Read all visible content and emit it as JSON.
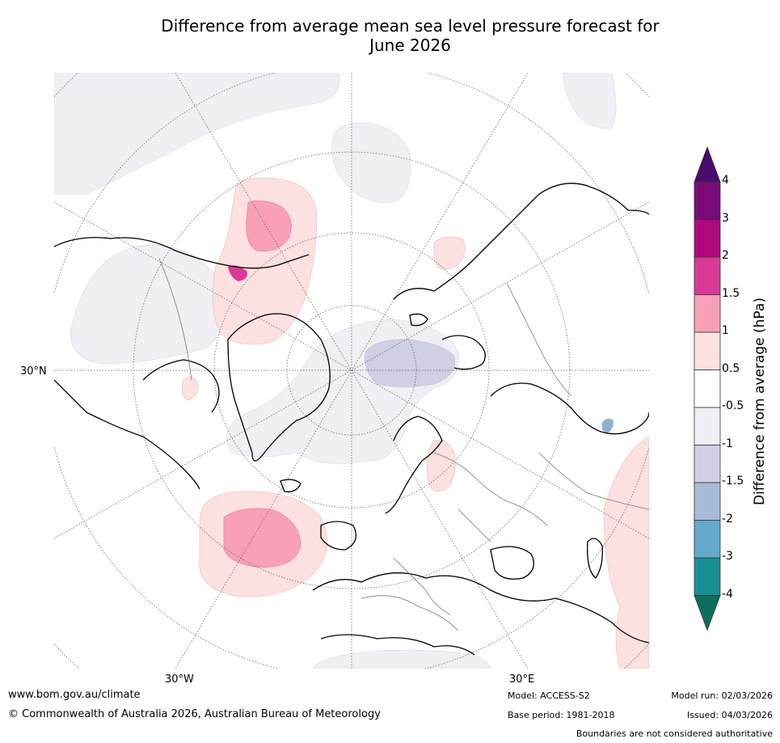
{
  "title_line1": "Difference from average mean sea level pressure forecast for",
  "title_line2": "June 2026",
  "map_labels": {
    "lat_30n": "30°N",
    "lon_30w": "30°W",
    "lon_30e": "30°E"
  },
  "colorbar": {
    "title": "Difference from average (hPa)",
    "ticks": [
      "4",
      "3",
      "2",
      "1.5",
      "1",
      "0.5",
      "-0.5",
      "-1",
      "-1.5",
      "-2",
      "-3",
      "-4"
    ],
    "colors": [
      "#4b0a6e",
      "#7a0a78",
      "#b0087e",
      "#d93a97",
      "#f7a0b8",
      "#fde0e0",
      "#ffffff",
      "#f1eef4",
      "#cfd0e4",
      "#a8bbd8",
      "#66a9cc",
      "#1a8f96",
      "#0d6e5e"
    ]
  },
  "footer": {
    "website": "www.bom.gov.au/climate",
    "copyright": "© Commonwealth of Australia 2026, Australian Bureau of Meteorology",
    "model": "Model: ACCESS-S2",
    "base_period": "Base period: 1981-2018",
    "model_run": "Model run: 02/03/2026",
    "issued": "Issued: 04/03/2026",
    "disclaimer": "Boundaries are not considered authoritative"
  }
}
